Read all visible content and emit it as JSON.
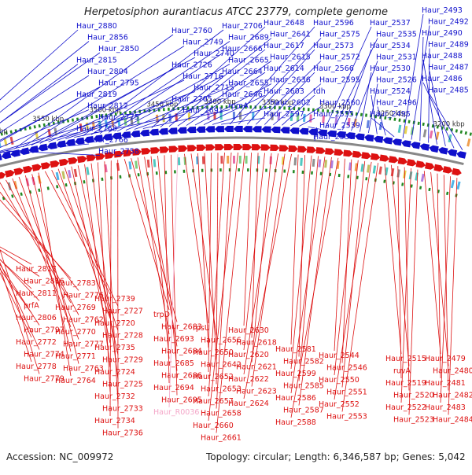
{
  "title": "Herpetosiphon aurantiacus ATCC 23779, complete genome",
  "accession_text": "Accession: NC_009972",
  "summary_text": "Topology: circular; Length: 6,346,587 bp; Genes: 5,042",
  "colors": {
    "forward": "#1010cc",
    "reverse": "#dd1111",
    "rna": "#f4a6c8",
    "tick": "#228822",
    "backbone": "#888888"
  },
  "scale_ticks": [
    "3650 kbp",
    "3600 kbp",
    "3550 kbp",
    "3500 kbp",
    "3450 kbp",
    "3400 kbp",
    "3350 kbp",
    "3300 kbp",
    "3250 kbp",
    "3200 kbp"
  ],
  "forward_genes": [
    "Haur_2880",
    "Haur_2856",
    "Haur_2850",
    "Haur_2815",
    "Haur_2804",
    "Haur_2795",
    "Haur_2819",
    "Haur_2812",
    "Haur_2775",
    "Haur_2768",
    "Haur_2766",
    "Haur_2758",
    "Haur_2760",
    "Haur_2749",
    "Haur_2740",
    "Haur_2726",
    "Haur_2716",
    "Haur_2715",
    "Haur_2705",
    "Haur_2691",
    "Haur_2706",
    "Haur_2689",
    "Haur_2666",
    "Haur_2665",
    "Haur_2664",
    "Haur_2655",
    "Haur_2646",
    "rpmA",
    "Haur_2648",
    "Haur_2641",
    "Haur_2617",
    "Haur_2615",
    "Haur_2614",
    "Haur_2636",
    "Haur_2603",
    "Haur_2602",
    "Haur_2597",
    "Haur_2596",
    "Haur_2575",
    "Haur_2573",
    "Haur_2572",
    "Haur_2566",
    "Haur_2595",
    "tdh",
    "Haur_2560",
    "Haur_2555",
    "Haur_2539",
    "Haur_2538",
    "Haur_2537",
    "Haur_2535",
    "Haur_2534",
    "Haur_2531",
    "Haur_2530",
    "Haur_2526",
    "Haur_2524",
    "Haur_2496",
    "Haur_2495",
    "Haur_2493",
    "Haur_2492",
    "Haur_2490",
    "Haur_2489",
    "Haur_2488",
    "Haur_2487",
    "Haur_2486",
    "Haur_2485"
  ],
  "reverse_genes": [
    "Haur_2817",
    "Haur_2816",
    "Haur_2811",
    "prfA",
    "Haur_2806",
    "Haur_2797",
    "Haur_2772",
    "Haur_2774",
    "Haur_2778",
    "Haur_2779",
    "Haur_2783",
    "Haur_2776",
    "Haur_2769",
    "Haur_2762",
    "Haur_2770",
    "Haur_2777",
    "Haur_2771",
    "Haur_2763",
    "Haur_2764",
    "Haur_2739",
    "Haur_2727",
    "Haur_2720",
    "Haur_2728",
    "Haur_2735",
    "Haur_2729",
    "Haur_2724",
    "Haur_2725",
    "Haur_2732",
    "Haur_2733",
    "Haur_2734",
    "Haur_2736",
    "trpD",
    "Haur_2683",
    "Haur_2693",
    "Haur_2684",
    "Haur_2685",
    "Haur_2686",
    "Haur_2694",
    "Haur_2695",
    "Haur_R0036",
    "rpsU",
    "Haur_2656",
    "Haur_2650",
    "Haur_2642",
    "Haur_2652",
    "Haur_2653",
    "Haur_2657",
    "Haur_2658",
    "Haur_2660",
    "Haur_2661",
    "Haur_2630",
    "Haur_2618",
    "Haur_2620",
    "Haur_2621",
    "Haur_2622",
    "Haur_2623",
    "Haur_2624",
    "Haur_2581",
    "Haur_2582",
    "Haur_2599",
    "Haur_2585",
    "Haur_2586",
    "Haur_2587",
    "Haur_2588",
    "Haur_2544",
    "Haur_2546",
    "Haur_2550",
    "Haur_2551",
    "Haur_2552",
    "Haur_2553",
    "Haur_2515",
    "ruvA",
    "Haur_2519",
    "Haur_2520",
    "Haur_2522",
    "Haur_2523",
    "Haur_2479",
    "Haur_2480",
    "Haur_2481",
    "Haur_2482",
    "Haur_2483",
    "Haur_2484"
  ]
}
